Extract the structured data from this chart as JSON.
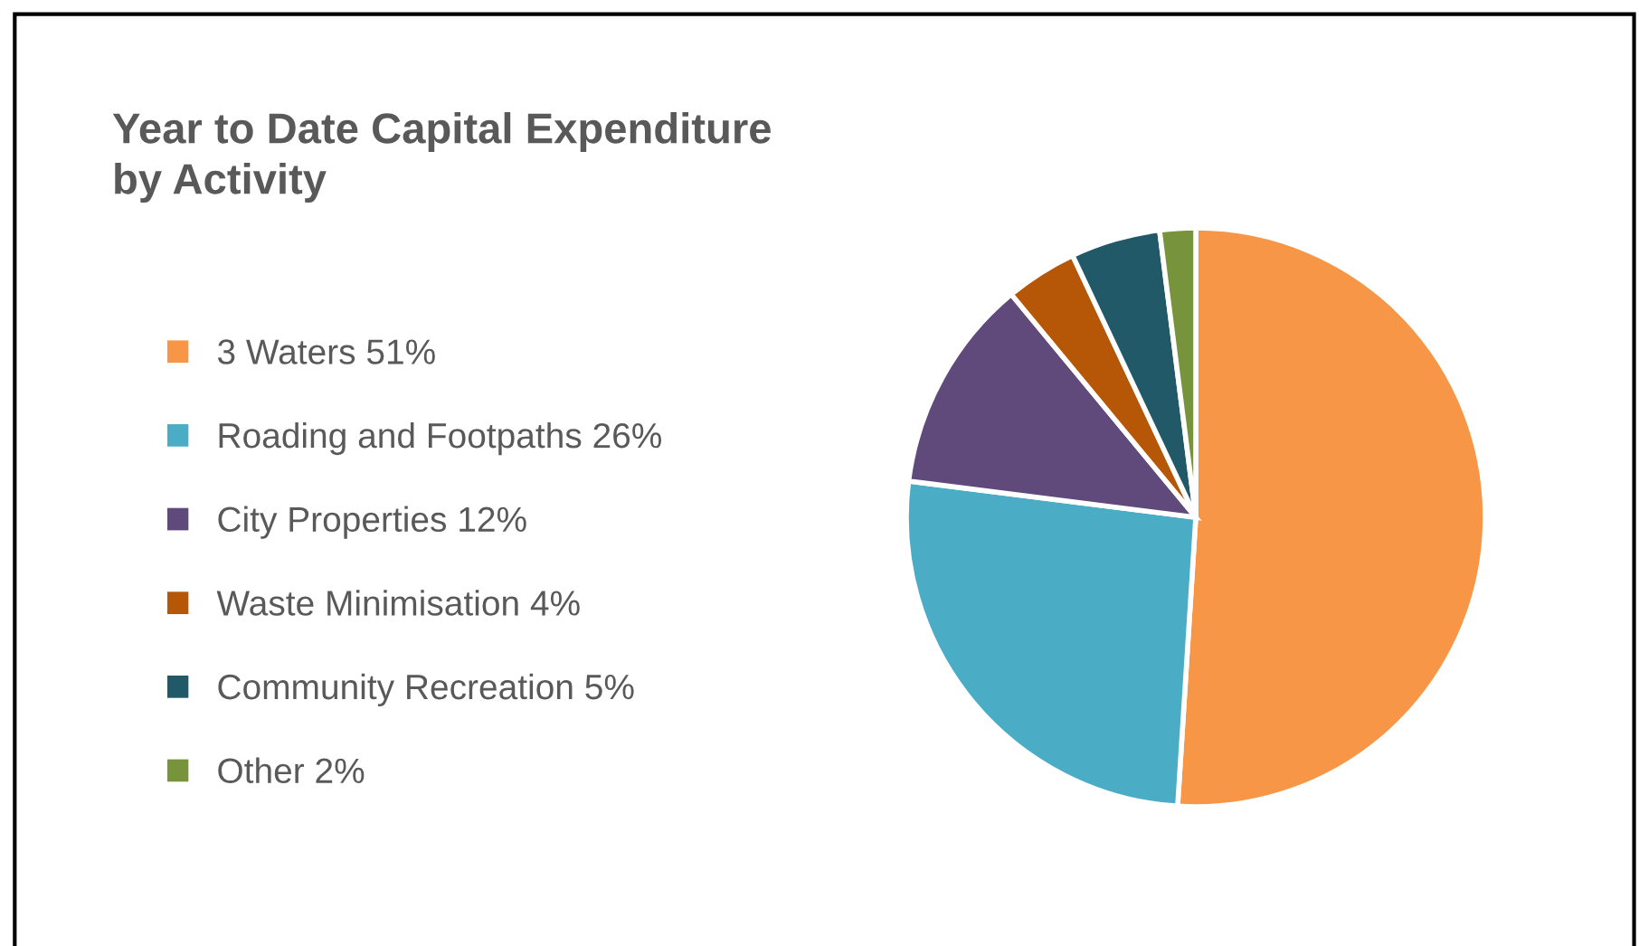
{
  "chart_data": {
    "type": "pie",
    "title": "Year to Date Capital Expenditure\nby Activity",
    "categories": [
      "3 Waters 51%",
      "Roading and Footpaths 26%",
      "City Properties 12%",
      "Waste Minimisation 4%",
      "Community Recreation 5%",
      "Other 2%"
    ],
    "values": [
      51,
      26,
      12,
      4,
      5,
      2
    ],
    "colors": [
      "#f79646",
      "#4bacc6",
      "#604a7b",
      "#b65708",
      "#215968",
      "#77933c"
    ],
    "legend": "left"
  }
}
